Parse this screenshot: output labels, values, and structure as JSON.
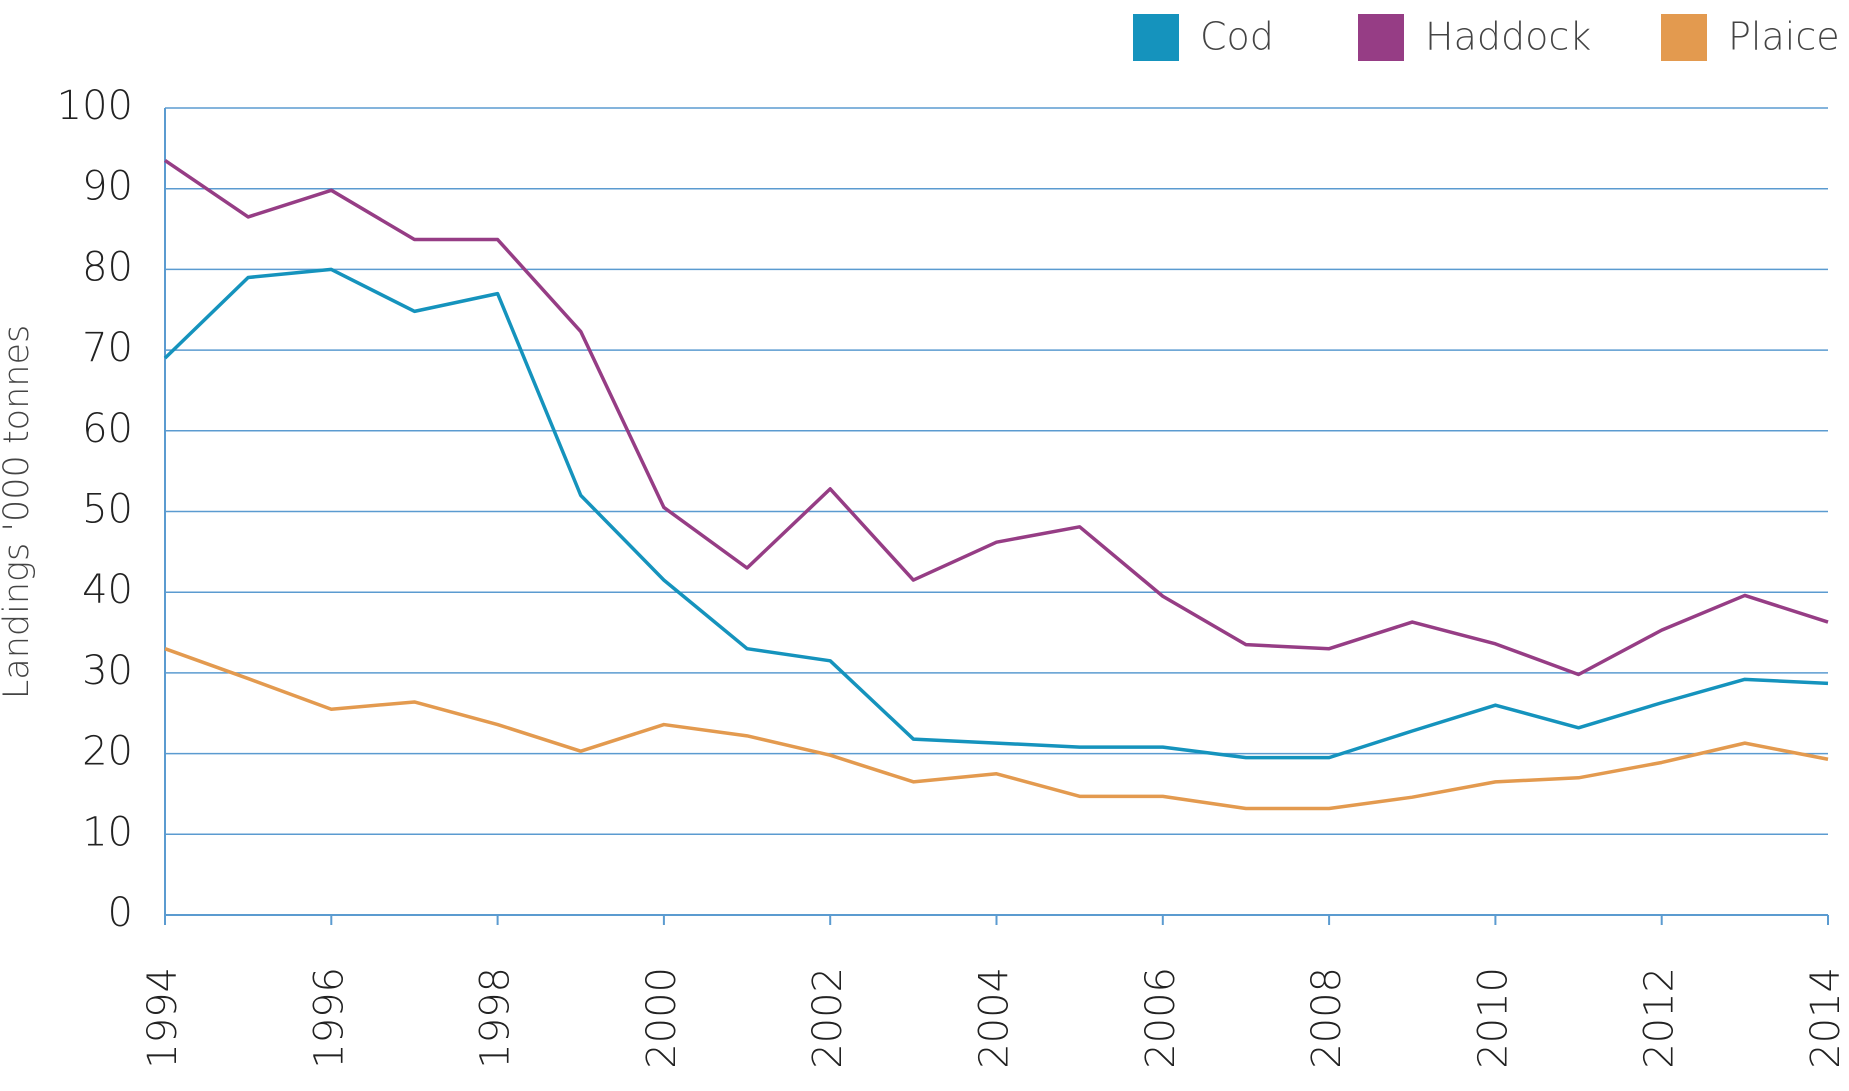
{
  "chart_data": {
    "type": "line",
    "y_label": "Landings '000 tonnes",
    "x": [
      1994,
      1995,
      1996,
      1997,
      1998,
      1999,
      2000,
      2001,
      2002,
      2003,
      2004,
      2005,
      2006,
      2007,
      2008,
      2009,
      2010,
      2011,
      2012,
      2013,
      2014
    ],
    "series": [
      {
        "name": "Cod",
        "color": "#1593bd",
        "values": [
          69,
          79,
          80,
          74.8,
          77,
          52,
          41.5,
          33,
          31.5,
          21.8,
          21.3,
          20.8,
          20.8,
          19.5,
          19.5,
          22.8,
          26,
          23.2,
          26.3,
          29.2,
          28.7
        ]
      },
      {
        "name": "Haddock",
        "color": "#963d85",
        "values": [
          93.5,
          86.5,
          89.8,
          83.7,
          83.7,
          72.3,
          50.5,
          43,
          52.8,
          41.5,
          46.2,
          48.1,
          39.5,
          33.5,
          33,
          36.3,
          33.6,
          29.8,
          35.3,
          39.6,
          36.3
        ]
      },
      {
        "name": "Plaice",
        "color": "#e39a4f",
        "values": [
          33,
          29.3,
          25.5,
          26.4,
          23.6,
          20.3,
          23.6,
          22.2,
          19.8,
          16.5,
          17.5,
          14.7,
          14.7,
          13.2,
          13.2,
          14.6,
          16.5,
          17,
          18.9,
          21.3,
          19.3
        ]
      }
    ],
    "xlim": [
      1994,
      2014
    ],
    "xticks": [
      1994,
      1996,
      1998,
      2000,
      2002,
      2004,
      2006,
      2008,
      2010,
      2012,
      2014
    ],
    "ylim": [
      0,
      100
    ],
    "yticks": [
      0,
      10,
      20,
      30,
      40,
      50,
      60,
      70,
      80,
      90,
      100
    ],
    "grid": true,
    "legend": "top-right"
  }
}
